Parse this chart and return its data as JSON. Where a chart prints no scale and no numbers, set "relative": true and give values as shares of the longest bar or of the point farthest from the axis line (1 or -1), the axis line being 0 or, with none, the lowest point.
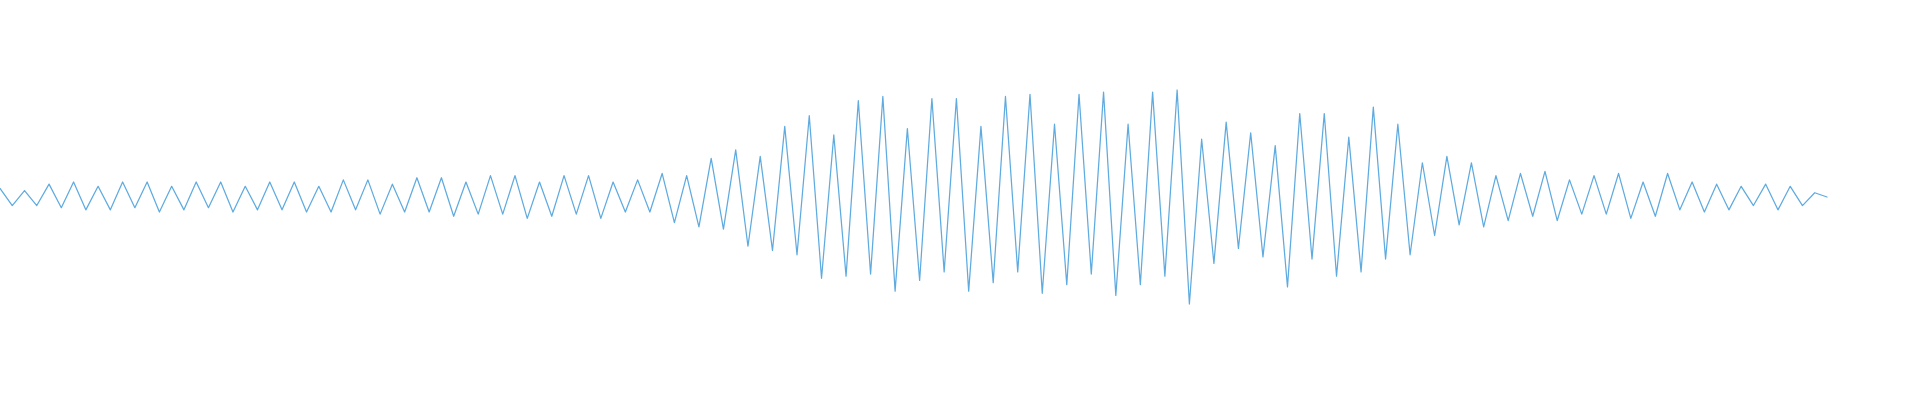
{
  "chart_data": {
    "type": "line",
    "relative": true,
    "color": "#5fabe0",
    "categories": [
      null,
      null,
      null,
      null,
      null,
      null,
      null,
      null,
      null,
      null,
      null,
      null,
      null,
      null,
      null,
      null,
      null,
      null,
      null,
      null,
      null,
      null,
      null,
      null,
      null,
      null,
      null,
      null,
      null,
      null,
      null,
      null,
      null,
      null,
      null,
      null,
      null,
      null,
      null,
      null,
      null,
      null,
      null,
      null,
      null,
      null,
      null,
      null,
      null,
      null,
      null,
      null,
      null,
      null,
      null,
      null,
      null,
      null,
      null,
      null,
      null,
      null,
      null,
      null,
      null,
      null,
      null,
      null,
      null,
      null,
      null,
      null,
      null,
      null,
      null,
      null,
      null,
      null,
      null,
      null,
      null,
      null,
      null,
      null,
      null,
      null,
      null,
      null,
      null,
      null,
      null,
      null,
      null,
      null,
      null,
      null,
      null,
      null,
      null,
      null,
      null,
      null,
      null,
      null,
      null,
      null,
      null,
      null,
      null,
      null,
      null,
      null,
      null,
      null,
      null,
      null,
      null,
      null,
      null,
      null,
      null,
      null,
      null,
      null,
      null,
      null,
      null,
      null,
      null,
      null,
      null,
      null,
      null,
      null,
      null,
      null,
      null,
      null,
      null,
      null,
      null,
      null,
      null,
      null,
      null,
      null,
      null,
      null,
      null,
      null
    ],
    "values": [
      0.54,
      0.46,
      0.53,
      0.46,
      0.56,
      0.45,
      0.57,
      0.44,
      0.55,
      0.44,
      0.57,
      0.45,
      0.57,
      0.43,
      0.55,
      0.44,
      0.57,
      0.45,
      0.57,
      0.43,
      0.55,
      0.44,
      0.57,
      0.44,
      0.57,
      0.43,
      0.55,
      0.43,
      0.58,
      0.44,
      0.58,
      0.42,
      0.56,
      0.43,
      0.59,
      0.43,
      0.59,
      0.41,
      0.57,
      0.42,
      0.6,
      0.42,
      0.6,
      0.4,
      0.57,
      0.41,
      0.6,
      0.42,
      0.6,
      0.4,
      0.57,
      0.43,
      0.58,
      0.43,
      0.61,
      0.38,
      0.6,
      0.36,
      0.68,
      0.35,
      0.72,
      0.27,
      0.69,
      0.25,
      0.83,
      0.23,
      0.88,
      0.12,
      0.79,
      0.13,
      0.95,
      0.14,
      0.97,
      0.06,
      0.82,
      0.11,
      0.96,
      0.15,
      0.96,
      0.06,
      0.83,
      0.1,
      0.97,
      0.15,
      0.98,
      0.05,
      0.84,
      0.09,
      0.98,
      0.14,
      0.99,
      0.04,
      0.84,
      0.09,
      0.99,
      0.13,
      1.0,
      0.0,
      0.77,
      0.19,
      0.85,
      0.26,
      0.8,
      0.22,
      0.74,
      0.08,
      0.89,
      0.21,
      0.89,
      0.13,
      0.78,
      0.15,
      0.92,
      0.21,
      0.84,
      0.23,
      0.66,
      0.32,
      0.69,
      0.37,
      0.66,
      0.36,
      0.6,
      0.39,
      0.61,
      0.41,
      0.62,
      0.39,
      0.58,
      0.42,
      0.6,
      0.42,
      0.61,
      0.4,
      0.57,
      0.41,
      0.61,
      0.44,
      0.57,
      0.43,
      0.56,
      0.44,
      0.55,
      0.46,
      0.56,
      0.44,
      0.55,
      0.46,
      0.52,
      0.5
    ]
  }
}
